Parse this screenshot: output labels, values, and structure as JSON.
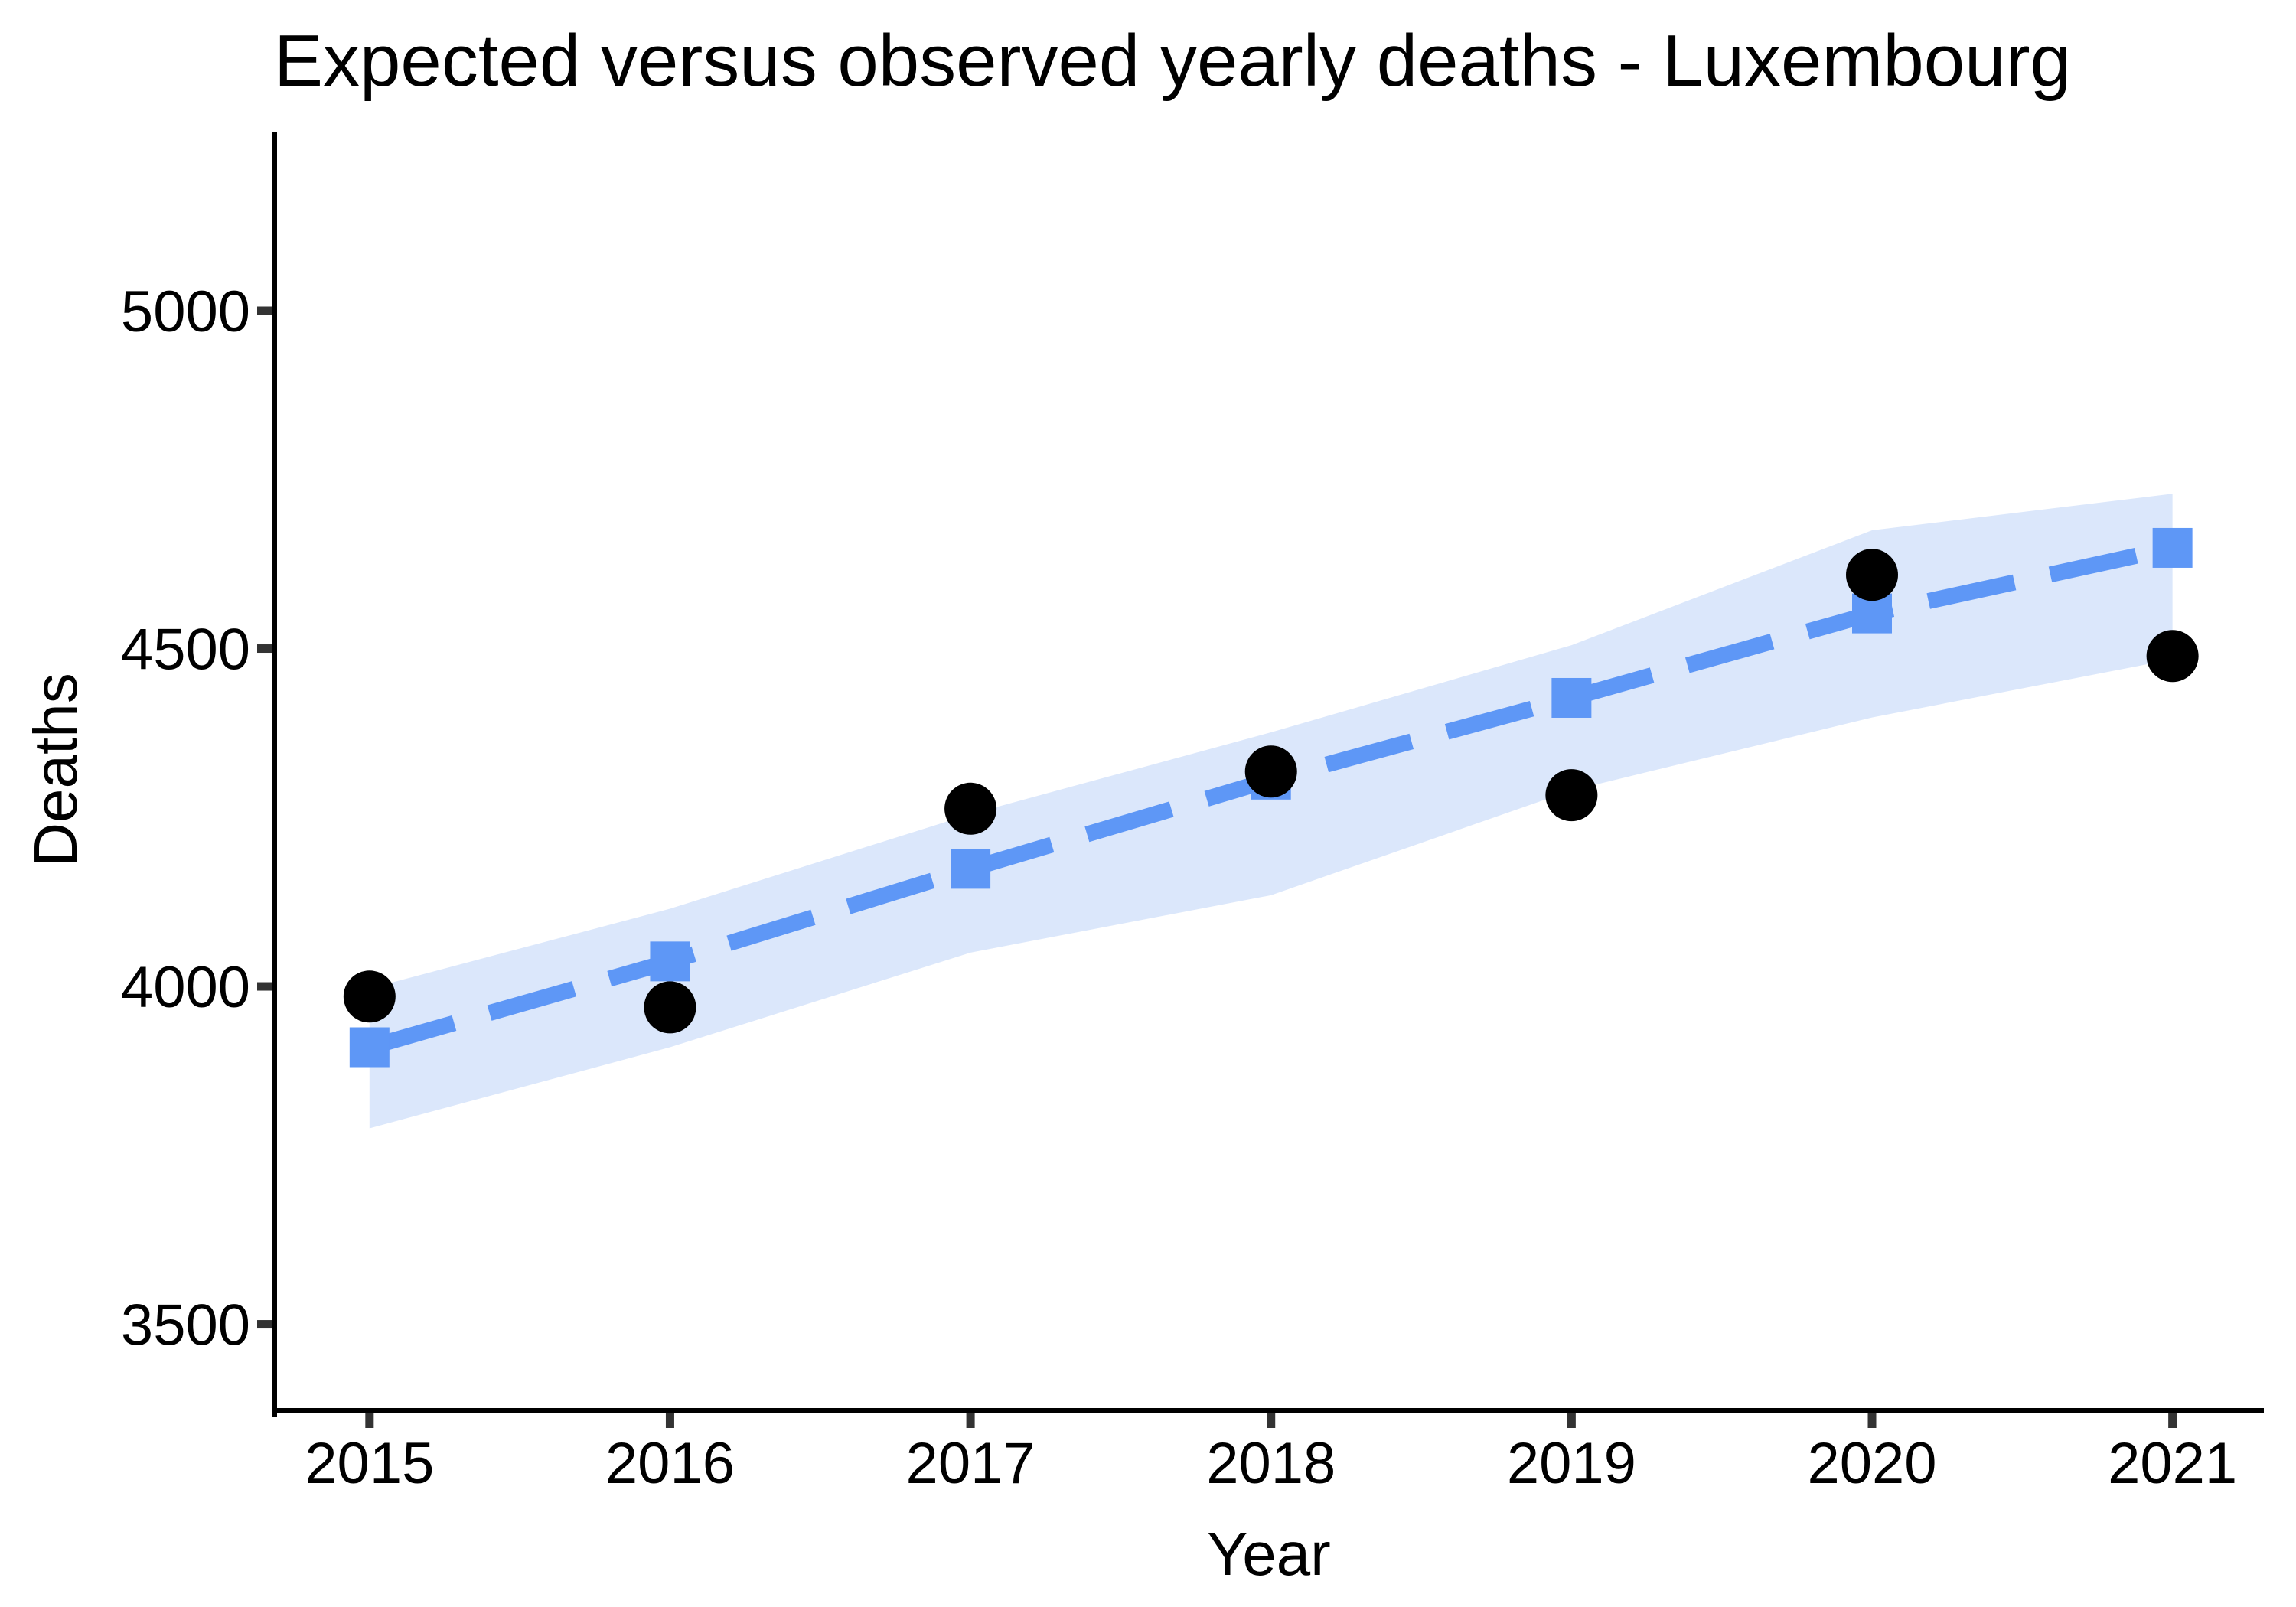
{
  "chart_data": {
    "type": "line",
    "title": "Expected versus observed yearly deaths - Luxembourg",
    "xlabel": "Year",
    "ylabel": "Deaths",
    "categories": [
      2015,
      2016,
      2017,
      2018,
      2019,
      2020,
      2021
    ],
    "series": [
      {
        "name": "expected",
        "marker": "square",
        "line_style": "dashed",
        "color": "#5e97f6",
        "values": [
          3910,
          4037,
          4174,
          4306,
          4427,
          4552,
          4649
        ]
      },
      {
        "name": "observed",
        "marker": "circle",
        "line_style": "none",
        "color": "#000000",
        "values": [
          3985,
          3969,
          4263,
          4318,
          4283,
          4609,
          4489
        ]
      }
    ],
    "band": {
      "name": "expected-uncertainty-band",
      "color": "#dbe7fb",
      "lower": [
        3790,
        3910,
        4050,
        4135,
        4290,
        4398,
        4484
      ],
      "upper": [
        3997,
        4115,
        4255,
        4376,
        4505,
        4675,
        4729
      ]
    },
    "y_ticks": [
      3500,
      4000,
      4500,
      5000
    ],
    "x_ticks": [
      2015,
      2016,
      2017,
      2018,
      2019,
      2020,
      2021
    ],
    "ylim": [
      3367,
      5265
    ],
    "xlim": [
      2014.677,
      2021.304
    ],
    "grid": false,
    "legend": false,
    "colors": {
      "axis_line": "#000000",
      "tick_mark": "#333333",
      "text": "#000000",
      "background": "#ffffff"
    }
  }
}
